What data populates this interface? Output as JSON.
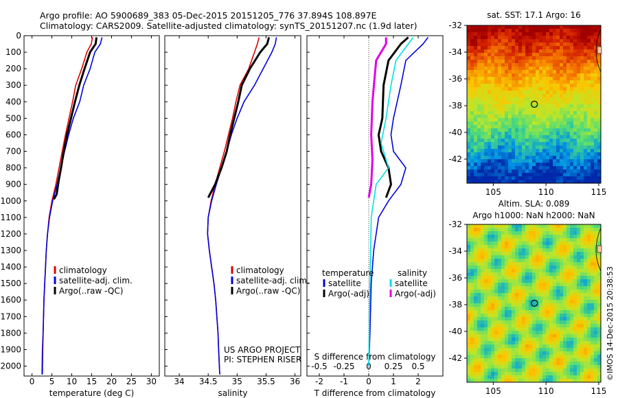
{
  "header": {
    "line1": "Argo profile: AO 5900689_383 05-Dec-2015 20151205_776 37.894S 108.897E",
    "line2": "Climatology: CARS2009. Satellite-adjusted climatology: synTS_20151207.nc (1.9d later)"
  },
  "colors": {
    "climatology": "#dd0000",
    "satellite": "#0000dd",
    "argo": "#000000",
    "sat_salinity": "#00e0e0",
    "argo_salinity": "#e000e0"
  },
  "chart_data": [
    {
      "id": "temperature",
      "type": "line",
      "xlabel": "temperature (deg C)",
      "xlim": [
        -2,
        32
      ],
      "xticks": [
        0,
        5,
        10,
        15,
        20,
        25,
        30
      ],
      "ylim": [
        2060,
        0
      ],
      "yticks": [
        0,
        100,
        200,
        300,
        400,
        500,
        600,
        700,
        800,
        900,
        1000,
        1100,
        1200,
        1300,
        1400,
        1500,
        1600,
        1700,
        1800,
        1900,
        2000
      ],
      "legend": [
        "climatology",
        "satellite-adj. clim.",
        "Argo(..raw -QC)"
      ],
      "series": [
        {
          "name": "climatology",
          "color": "#dd0000",
          "points": [
            [
              15.2,
              10
            ],
            [
              14.9,
              50
            ],
            [
              13.8,
              100
            ],
            [
              12.5,
              200
            ],
            [
              11.0,
              300
            ],
            [
              10.2,
              400
            ],
            [
              9.3,
              500
            ],
            [
              8.4,
              600
            ],
            [
              7.6,
              700
            ],
            [
              6.8,
              800
            ],
            [
              6.0,
              900
            ],
            [
              5.0,
              1000
            ],
            [
              4.3,
              1100
            ],
            [
              3.9,
              1200
            ],
            [
              3.6,
              1300
            ],
            [
              3.4,
              1400
            ],
            [
              3.2,
              1500
            ],
            [
              3.0,
              1600
            ],
            [
              2.9,
              1700
            ],
            [
              2.8,
              1800
            ],
            [
              2.6,
              1900
            ],
            [
              2.5,
              2050
            ]
          ]
        },
        {
          "name": "satellite-adj. clim.",
          "color": "#0000dd",
          "points": [
            [
              17.6,
              10
            ],
            [
              17.2,
              50
            ],
            [
              15.8,
              100
            ],
            [
              14.6,
              200
            ],
            [
              13.0,
              300
            ],
            [
              12.0,
              400
            ],
            [
              10.4,
              500
            ],
            [
              9.2,
              600
            ],
            [
              8.2,
              700
            ],
            [
              7.2,
              800
            ],
            [
              6.3,
              900
            ],
            [
              5.2,
              1000
            ],
            [
              4.4,
              1100
            ],
            [
              3.9,
              1200
            ],
            [
              3.6,
              1300
            ],
            [
              3.4,
              1400
            ],
            [
              3.2,
              1500
            ],
            [
              3.0,
              1600
            ],
            [
              2.9,
              1700
            ],
            [
              2.8,
              1800
            ],
            [
              2.7,
              1900
            ],
            [
              2.6,
              2050
            ]
          ]
        },
        {
          "name": "Argo(..raw -QC)",
          "color": "#000000",
          "points": [
            [
              16.2,
              10
            ],
            [
              16.0,
              50
            ],
            [
              14.6,
              100
            ],
            [
              13.2,
              200
            ],
            [
              11.9,
              300
            ],
            [
              10.8,
              400
            ],
            [
              9.8,
              500
            ],
            [
              8.8,
              600
            ],
            [
              8.0,
              700
            ],
            [
              7.3,
              800
            ],
            [
              6.7,
              880
            ],
            [
              6.2,
              960
            ],
            [
              5.5,
              990
            ]
          ]
        }
      ]
    },
    {
      "id": "salinity",
      "type": "line",
      "xlabel": "salinity",
      "xlim": [
        33.75,
        36.1
      ],
      "xticks": [
        34,
        34.5,
        35,
        35.5,
        36
      ],
      "ylim": [
        2060,
        0
      ],
      "legend": [
        "climatology",
        "satellite-adj. clim.",
        "Argo(..raw -QC)"
      ],
      "annotation": [
        "US ARGO PROJECT",
        "PI: STEPHEN RISER"
      ],
      "series": [
        {
          "name": "climatology",
          "color": "#dd0000",
          "points": [
            [
              35.38,
              10
            ],
            [
              35.35,
              50
            ],
            [
              35.3,
              100
            ],
            [
              35.2,
              200
            ],
            [
              35.05,
              300
            ],
            [
              34.98,
              400
            ],
            [
              34.92,
              500
            ],
            [
              34.85,
              600
            ],
            [
              34.78,
              700
            ],
            [
              34.7,
              800
            ],
            [
              34.62,
              900
            ],
            [
              34.55,
              1000
            ],
            [
              34.5,
              1100
            ],
            [
              34.49,
              1200
            ],
            [
              34.52,
              1300
            ],
            [
              34.56,
              1400
            ],
            [
              34.6,
              1500
            ],
            [
              34.63,
              1600
            ],
            [
              34.65,
              1700
            ],
            [
              34.67,
              1800
            ],
            [
              34.68,
              1900
            ],
            [
              34.7,
              2050
            ]
          ]
        },
        {
          "name": "satellite-adj. clim.",
          "color": "#0000dd",
          "points": [
            [
              35.68,
              10
            ],
            [
              35.66,
              50
            ],
            [
              35.6,
              100
            ],
            [
              35.45,
              200
            ],
            [
              35.3,
              300
            ],
            [
              35.12,
              400
            ],
            [
              35.0,
              500
            ],
            [
              34.9,
              600
            ],
            [
              34.82,
              700
            ],
            [
              34.73,
              800
            ],
            [
              34.64,
              900
            ],
            [
              34.56,
              1000
            ],
            [
              34.5,
              1100
            ],
            [
              34.49,
              1200
            ],
            [
              34.52,
              1300
            ],
            [
              34.56,
              1400
            ],
            [
              34.6,
              1500
            ],
            [
              34.63,
              1600
            ],
            [
              34.65,
              1700
            ],
            [
              34.67,
              1800
            ],
            [
              34.68,
              1900
            ],
            [
              34.7,
              2050
            ]
          ]
        },
        {
          "name": "Argo(..raw -QC)",
          "color": "#000000",
          "points": [
            [
              35.55,
              10
            ],
            [
              35.52,
              50
            ],
            [
              35.4,
              100
            ],
            [
              35.22,
              200
            ],
            [
              35.08,
              300
            ],
            [
              35.02,
              400
            ],
            [
              34.95,
              500
            ],
            [
              34.88,
              600
            ],
            [
              34.82,
              700
            ],
            [
              34.73,
              800
            ],
            [
              34.62,
              900
            ],
            [
              34.5,
              980
            ]
          ]
        }
      ]
    },
    {
      "id": "difference",
      "type": "line",
      "xlabel": "T difference from climatology",
      "xlim": [
        -2.5,
        3.0
      ],
      "xticks": [
        -2,
        -1,
        0,
        1,
        2
      ],
      "xlabel2": "S difference from climatology",
      "xticks2": [
        "-0.5",
        "-0.25",
        "0",
        "0.25",
        "0.5"
      ],
      "ylim": [
        2060,
        0
      ],
      "legend_headers": [
        "temperature",
        "salinity"
      ],
      "legend": [
        "satellite",
        "Argo(-adj)",
        "satellite",
        "Argo(-adj)"
      ],
      "series": [
        {
          "name": "satellite",
          "color": "#0000dd",
          "points": [
            [
              2.4,
              10
            ],
            [
              2.2,
              50
            ],
            [
              1.5,
              150
            ],
            [
              1.3,
              300
            ],
            [
              1.0,
              500
            ],
            [
              0.9,
              600
            ],
            [
              1.0,
              700
            ],
            [
              1.5,
              800
            ],
            [
              1.3,
              900
            ],
            [
              0.8,
              1000
            ],
            [
              0.4,
              1100
            ],
            [
              0.2,
              1300
            ],
            [
              0.1,
              1500
            ],
            [
              0.05,
              1800
            ],
            [
              0.0,
              2000
            ]
          ]
        },
        {
          "name": "Argo(-adj)",
          "color": "#000000",
          "points": [
            [
              1.6,
              10
            ],
            [
              1.3,
              50
            ],
            [
              0.8,
              150
            ],
            [
              0.6,
              300
            ],
            [
              0.55,
              500
            ],
            [
              0.4,
              600
            ],
            [
              0.5,
              700
            ],
            [
              0.8,
              800
            ],
            [
              0.9,
              900
            ],
            [
              0.7,
              980
            ]
          ]
        },
        {
          "name": "satellite",
          "color": "#00e0e0",
          "points": [
            [
              1.8,
              10
            ],
            [
              1.6,
              50
            ],
            [
              1.1,
              150
            ],
            [
              0.9,
              300
            ],
            [
              0.7,
              500
            ],
            [
              0.5,
              650
            ],
            [
              0.7,
              750
            ],
            [
              0.8,
              800
            ],
            [
              0.3,
              900
            ],
            [
              0.1,
              1100
            ],
            [
              0.05,
              1500
            ],
            [
              0.0,
              2000
            ]
          ]
        },
        {
          "name": "Argo(-adj)",
          "color": "#e000e0",
          "points": [
            [
              0.7,
              10
            ],
            [
              0.7,
              50
            ],
            [
              0.3,
              150
            ],
            [
              0.15,
              400
            ],
            [
              0.1,
              600
            ],
            [
              0.15,
              750
            ],
            [
              0.1,
              900
            ],
            [
              0.0,
              980
            ]
          ]
        }
      ]
    },
    {
      "id": "sst_map",
      "type": "heatmap",
      "title": "sat. SST: 17.1  Argo: 16",
      "xlim": [
        102.5,
        115.2
      ],
      "ylim": [
        -43.8,
        -32
      ],
      "xticks": [
        105,
        110,
        115
      ],
      "yticks": [
        -32,
        -34,
        -36,
        -38,
        -40,
        -42
      ],
      "argo_lon": 108.897,
      "argo_lat": -37.894
    },
    {
      "id": "sla_map",
      "type": "heatmap",
      "title": "Altim. SLA: 0.089",
      "subtitle": "Argo h1000: NaN h2000: NaN",
      "xlim": [
        102.5,
        115.2
      ],
      "ylim": [
        -43.8,
        -32
      ],
      "xticks": [
        105,
        110,
        115
      ],
      "yticks": [
        -32,
        -34,
        -36,
        -38,
        -40,
        -42
      ],
      "argo_lon": 108.897,
      "argo_lat": -37.894
    }
  ],
  "footer_stamp": "©IMOS 14-Dec-2015 20:38:53"
}
